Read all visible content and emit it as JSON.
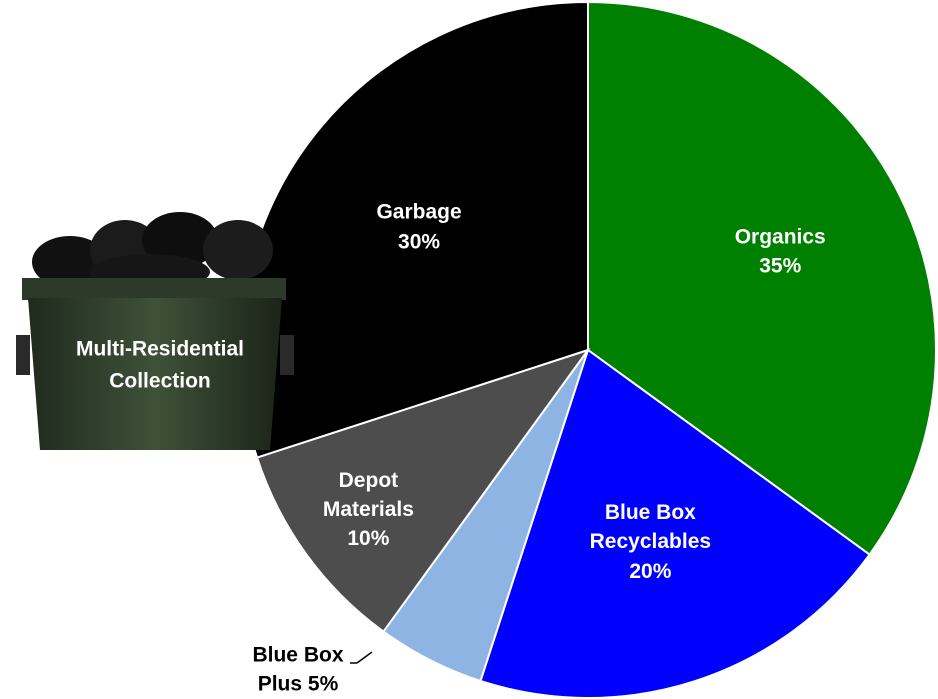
{
  "chart_data": {
    "type": "pie",
    "categories": [
      "Organics",
      "Blue Box Recyclables",
      "Blue Box Plus",
      "Depot Materials",
      "Garbage"
    ],
    "values": [
      35,
      20,
      5,
      10,
      30
    ],
    "value_labels": [
      "35%",
      "20%",
      "5%",
      "10%",
      "30%"
    ],
    "colors": [
      "#008000",
      "#0000ff",
      "#8db4e2",
      "#4d4d4d",
      "#000000"
    ],
    "annotations": [
      "Multi-Residential Collection"
    ]
  }
}
